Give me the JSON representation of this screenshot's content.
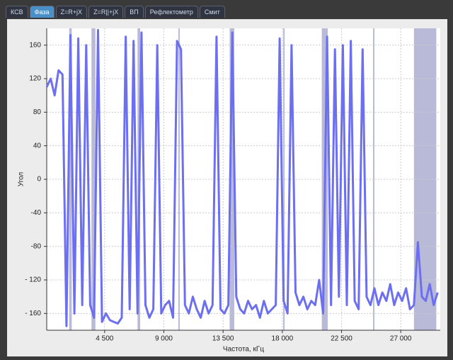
{
  "tabs": [
    "КСВ",
    "Фаза",
    "Z=R+jX",
    "Z=R||+jX",
    "ВП",
    "Рефлектометр",
    "Смит"
  ],
  "chart_data": {
    "type": "line",
    "x_label": "Частота, кГц",
    "y_label": "Угол",
    "xlim": [
      100,
      30000
    ],
    "ylim": [
      -180,
      180
    ],
    "xticks": [
      {
        "value": 4500,
        "label": "4 500"
      },
      {
        "value": 9000,
        "label": "9 000"
      },
      {
        "value": 13500,
        "label": "13 500"
      },
      {
        "value": 18000,
        "label": "18 000"
      },
      {
        "value": 22500,
        "label": "22 500"
      },
      {
        "value": 27000,
        "label": "27 000"
      }
    ],
    "yticks": [
      {
        "value": -160,
        "label": "- 160"
      },
      {
        "value": -120,
        "label": "- 120"
      },
      -80,
      -40,
      0,
      40,
      80,
      120,
      160
    ],
    "grid": true,
    "bands": [
      [
        1810,
        2000
      ],
      [
        3500,
        3800
      ],
      [
        7000,
        7200
      ],
      [
        10100,
        10150
      ],
      [
        14000,
        14350
      ],
      [
        18068,
        18168
      ],
      [
        21000,
        21450
      ],
      [
        24890,
        24990
      ],
      [
        28000,
        29700
      ]
    ],
    "band_color": "#b8bad8",
    "x": [
      100,
      400,
      700,
      1000,
      1300,
      1600,
      1900,
      2200,
      2500,
      2800,
      3100,
      3400,
      3700,
      4000,
      4300,
      4600,
      4900,
      5200,
      5500,
      5800,
      6100,
      6400,
      6700,
      7000,
      7300,
      7600,
      7900,
      8200,
      8500,
      8800,
      9100,
      9400,
      9700,
      10000,
      10300,
      10600,
      10900,
      11200,
      11500,
      11800,
      12100,
      12400,
      12700,
      13000,
      13300,
      13600,
      13900,
      14200,
      14500,
      14800,
      15100,
      15400,
      15700,
      16000,
      16300,
      16600,
      16900,
      17200,
      17500,
      17800,
      18100,
      18400,
      18700,
      19000,
      19300,
      19600,
      19900,
      20200,
      20500,
      20800,
      21100,
      21400,
      21700,
      22000,
      22300,
      22600,
      22900,
      23200,
      23500,
      23800,
      24100,
      24400,
      24700,
      25000,
      25300,
      25600,
      25900,
      26200,
      26500,
      26800,
      27100,
      27400,
      27700,
      28000,
      28300,
      28600,
      28900,
      29200,
      29500,
      29800
    ],
    "series": [
      {
        "color": "#6b6ff0",
        "values": [
          110,
          120,
          100,
          130,
          125,
          -175,
          172,
          -160,
          168,
          -150,
          160,
          -150,
          -165,
          178,
          -170,
          -160,
          -168,
          -170,
          -172,
          -165,
          170,
          -155,
          165,
          -160,
          175,
          -150,
          -165,
          -155,
          160,
          -160,
          -150,
          -145,
          -165,
          165,
          155,
          -150,
          -160,
          -140,
          -155,
          -165,
          -145,
          -160,
          -150,
          170,
          -155,
          -160,
          -150,
          175,
          -140,
          -155,
          -160,
          -145,
          -155,
          -150,
          -165,
          -145,
          -160,
          -155,
          -150,
          168,
          -145,
          -160,
          160,
          -135,
          -150,
          -140,
          -155,
          -145,
          -150,
          -120,
          -160,
          170,
          -150,
          155,
          -140,
          160,
          -150,
          165,
          -145,
          -155,
          155,
          -140,
          -150,
          -130,
          -150,
          -135,
          -145,
          -125,
          -150,
          -135,
          -145,
          -130,
          -155,
          -150,
          -75,
          -140,
          -145,
          -125,
          -150,
          -135
        ]
      }
    ]
  }
}
